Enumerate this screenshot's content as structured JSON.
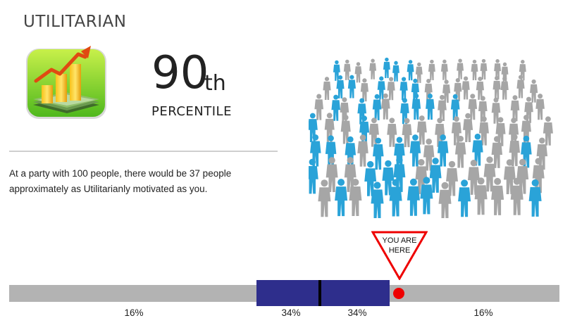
{
  "header": {
    "title": "UTILITARIAN"
  },
  "score": {
    "percentile_number": "90",
    "percentile_suffix": "th",
    "percentile_label": "PERCENTILE"
  },
  "description": "At a party with 100 people, there would be 37 people approximately as Utilitarianly motivated as you.",
  "icon": {
    "name": "money-growth-chart-icon"
  },
  "crowd": {
    "name": "crowd-people-illustration",
    "highlight_color": "#2aa3d8",
    "base_color": "#a6a6a6"
  },
  "marker": {
    "line1": "YOU ARE",
    "line2": "HERE",
    "color": "#ee0000"
  },
  "distribution": {
    "segments": [
      {
        "label": "16%"
      },
      {
        "label": "34%"
      },
      {
        "label": "34%"
      },
      {
        "label": "16%"
      }
    ],
    "track_color": "#b3b3b3",
    "band_color": "#2e2e8c"
  }
}
